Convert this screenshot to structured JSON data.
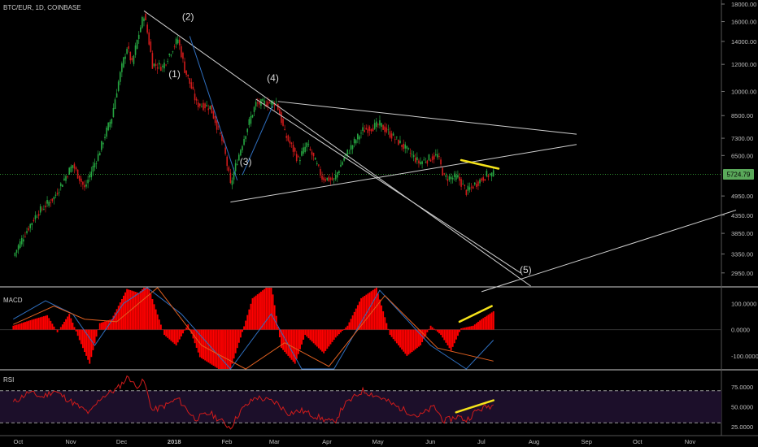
{
  "symbol_title": "BTC/EUR, 1D, COINBASE",
  "colors": {
    "background": "#000000",
    "candle_up": "#26a641",
    "candle_down": "#d01b1b",
    "trendline": "#cfcfcf",
    "highlight": "#f5e31a",
    "macd_hist": "#ff0000",
    "macd_line": "#2f6fbf",
    "signal_line": "#e06020",
    "rsi_line": "#d01b1b",
    "rsi_band": "#1c0f2a",
    "price_line": "#2e8b2e",
    "price_badge": "#5aa85a"
  },
  "chart_data": [
    {
      "type": "candlestick",
      "panel": "price",
      "title": "BTC/EUR, 1D, COINBASE",
      "y_scale": "log",
      "ylim": [
        2700,
        18500
      ],
      "y_ticks": [
        "18000.00",
        "16000.00",
        "14000.00",
        "12000.00",
        "10000.00",
        "8500.00",
        "7300.00",
        "6500.00",
        "5724.79",
        "4950.00",
        "4350.00",
        "3850.00",
        "3350.00",
        "2950.00"
      ],
      "current_price": "5724.79",
      "x_ticks": [
        "Oct",
        "Nov",
        "Dec",
        "2018",
        "Feb",
        "Mar",
        "Apr",
        "May",
        "Jun",
        "Jul",
        "Aug",
        "Sep",
        "Oct",
        "Nov"
      ],
      "price_path": [
        [
          "2017-10-01",
          3300
        ],
        [
          "2017-10-15",
          4400
        ],
        [
          "2017-10-25",
          4900
        ],
        [
          "2017-11-05",
          6100
        ],
        [
          "2017-11-12",
          5200
        ],
        [
          "2017-11-20",
          6500
        ],
        [
          "2017-11-28",
          8400
        ],
        [
          "2017-12-07",
          13500
        ],
        [
          "2017-12-10",
          12000
        ],
        [
          "2017-12-17",
          16800
        ],
        [
          "2017-12-22",
          12000
        ],
        [
          "2017-12-28",
          11800
        ],
        [
          "2018-01-06",
          14200
        ],
        [
          "2018-01-10",
          11600
        ],
        [
          "2018-01-17",
          9200
        ],
        [
          "2018-01-25",
          9000
        ],
        [
          "2018-02-02",
          6900
        ],
        [
          "2018-02-06",
          5300
        ],
        [
          "2018-02-12",
          6800
        ],
        [
          "2018-02-21",
          9200
        ],
        [
          "2018-03-05",
          9300
        ],
        [
          "2018-03-10",
          7500
        ],
        [
          "2018-03-18",
          6300
        ],
        [
          "2018-03-23",
          7000
        ],
        [
          "2018-04-01",
          5600
        ],
        [
          "2018-04-08",
          5500
        ],
        [
          "2018-04-14",
          6400
        ],
        [
          "2018-04-25",
          7700
        ],
        [
          "2018-05-05",
          8000
        ],
        [
          "2018-05-15",
          7200
        ],
        [
          "2018-05-28",
          6200
        ],
        [
          "2018-06-08",
          6500
        ],
        [
          "2018-06-12",
          5600
        ],
        [
          "2018-06-20",
          5600
        ],
        [
          "2018-06-25",
          5100
        ],
        [
          "2018-07-01",
          5400
        ],
        [
          "2018-07-07",
          5700
        ],
        [
          "2018-07-11",
          5725
        ]
      ],
      "wave_labels": [
        {
          "label": "(1)",
          "date": "2018-01-04",
          "price": 11000
        },
        {
          "label": "(2)",
          "date": "2018-01-12",
          "price": 16200
        },
        {
          "label": "(3)",
          "date": "2018-02-15",
          "price": 6100
        },
        {
          "label": "(4)",
          "date": "2018-03-03",
          "price": 10700
        },
        {
          "label": "(5)",
          "date": "2018-07-30",
          "price": 2950
        }
      ],
      "trendlines": [
        {
          "from": [
            "2017-12-17",
            17200
          ],
          "to": [
            "2018-08-02",
            2700
          ]
        },
        {
          "from": [
            "2018-02-21",
            9500
          ],
          "to": [
            "2018-07-27",
            2950
          ]
        },
        {
          "from": [
            "2018-03-06",
            9350
          ],
          "to": [
            "2018-08-29",
            7500
          ]
        },
        {
          "from": [
            "2018-02-06",
            4750
          ],
          "to": [
            "2018-08-29",
            7000
          ]
        },
        {
          "from": [
            "2018-07-04",
            2600
          ],
          "to": [
            "2018-12-01",
            4500
          ]
        },
        {
          "from": [
            "2018-01-13",
            14500
          ],
          "to": [
            "2018-02-10",
            5500
          ]
        },
        {
          "from": [
            "2018-02-13",
            5700
          ],
          "to": [
            "2018-03-03",
            9100
          ]
        }
      ],
      "highlight_line": {
        "from": [
          "2018-06-22",
          6300
        ],
        "to": [
          "2018-07-14",
          5950
        ]
      }
    },
    {
      "type": "histogram",
      "panel": "macd",
      "label": "MACD",
      "ylim": [
        -150,
        160
      ],
      "y_ticks": [
        "100.0000",
        "0.0000",
        "-100.0000"
      ],
      "hist_path": [
        [
          "2017-10-01",
          15
        ],
        [
          "2017-10-13",
          40
        ],
        [
          "2017-10-21",
          55
        ],
        [
          "2017-10-27",
          -10
        ],
        [
          "2017-11-03",
          60
        ],
        [
          "2017-11-09",
          -40
        ],
        [
          "2017-11-15",
          -130
        ],
        [
          "2017-11-21",
          25
        ],
        [
          "2017-11-28",
          40
        ],
        [
          "2017-12-07",
          155
        ],
        [
          "2017-12-14",
          140
        ],
        [
          "2017-12-19",
          175
        ],
        [
          "2017-12-29",
          -20
        ],
        [
          "2018-01-05",
          -60
        ],
        [
          "2018-01-12",
          20
        ],
        [
          "2018-01-19",
          -105
        ],
        [
          "2018-01-30",
          -150
        ],
        [
          "2018-02-06",
          -150
        ],
        [
          "2018-02-12",
          -30
        ],
        [
          "2018-02-19",
          120
        ],
        [
          "2018-03-02",
          175
        ],
        [
          "2018-03-08",
          -70
        ],
        [
          "2018-03-16",
          -130
        ],
        [
          "2018-03-22",
          -20
        ],
        [
          "2018-04-02",
          -90
        ],
        [
          "2018-04-09",
          -30
        ],
        [
          "2018-04-16",
          15
        ],
        [
          "2018-04-24",
          120
        ],
        [
          "2018-05-03",
          160
        ],
        [
          "2018-05-11",
          -20
        ],
        [
          "2018-05-21",
          -100
        ],
        [
          "2018-05-29",
          -60
        ],
        [
          "2018-06-04",
          15
        ],
        [
          "2018-06-10",
          -20
        ],
        [
          "2018-06-16",
          -80
        ],
        [
          "2018-06-22",
          5
        ],
        [
          "2018-06-29",
          15
        ],
        [
          "2018-07-04",
          40
        ],
        [
          "2018-07-11",
          70
        ]
      ],
      "macd_path": [
        [
          "2017-10-01",
          40
        ],
        [
          "2017-10-20",
          110
        ],
        [
          "2017-11-05",
          60
        ],
        [
          "2017-11-18",
          -60
        ],
        [
          "2017-12-05",
          100
        ],
        [
          "2017-12-19",
          280
        ],
        [
          "2018-01-08",
          60
        ],
        [
          "2018-02-06",
          -280
        ],
        [
          "2018-03-02",
          60
        ],
        [
          "2018-03-20",
          -150
        ],
        [
          "2018-04-08",
          -150
        ],
        [
          "2018-05-05",
          150
        ],
        [
          "2018-06-04",
          -60
        ],
        [
          "2018-06-25",
          -160
        ],
        [
          "2018-07-11",
          -40
        ]
      ],
      "signal_path": [
        [
          "2017-10-01",
          20
        ],
        [
          "2017-10-25",
          90
        ],
        [
          "2017-11-12",
          40
        ],
        [
          "2017-12-01",
          30
        ],
        [
          "2017-12-25",
          260
        ],
        [
          "2018-01-20",
          -60
        ],
        [
          "2018-02-15",
          -250
        ],
        [
          "2018-03-10",
          -50
        ],
        [
          "2018-04-05",
          -140
        ],
        [
          "2018-05-08",
          130
        ],
        [
          "2018-06-08",
          -70
        ],
        [
          "2018-07-11",
          -120
        ]
      ],
      "highlight_line": {
        "from": [
          "2018-06-21",
          30
        ],
        "to": [
          "2018-07-10",
          90
        ]
      }
    },
    {
      "type": "line",
      "panel": "rsi",
      "label": "RSI",
      "ylim": [
        15,
        95
      ],
      "y_ticks": [
        "75.0000",
        "50.0000",
        "25.0000"
      ],
      "band": [
        30,
        70
      ],
      "rsi_path": [
        [
          "2017-10-01",
          55
        ],
        [
          "2017-10-10",
          68
        ],
        [
          "2017-10-18",
          62
        ],
        [
          "2017-10-25",
          70
        ],
        [
          "2017-11-03",
          58
        ],
        [
          "2017-11-10",
          48
        ],
        [
          "2017-11-15",
          42
        ],
        [
          "2017-11-22",
          62
        ],
        [
          "2017-12-01",
          72
        ],
        [
          "2017-12-08",
          88
        ],
        [
          "2017-12-12",
          75
        ],
        [
          "2017-12-17",
          82
        ],
        [
          "2017-12-22",
          45
        ],
        [
          "2017-12-30",
          52
        ],
        [
          "2018-01-06",
          60
        ],
        [
          "2018-01-16",
          35
        ],
        [
          "2018-01-25",
          42
        ],
        [
          "2018-02-02",
          30
        ],
        [
          "2018-02-06",
          24
        ],
        [
          "2018-02-12",
          45
        ],
        [
          "2018-02-21",
          62
        ],
        [
          "2018-03-05",
          55
        ],
        [
          "2018-03-12",
          42
        ],
        [
          "2018-03-20",
          45
        ],
        [
          "2018-04-01",
          35
        ],
        [
          "2018-04-08",
          30
        ],
        [
          "2018-04-14",
          52
        ],
        [
          "2018-04-25",
          70
        ],
        [
          "2018-05-05",
          62
        ],
        [
          "2018-05-15",
          50
        ],
        [
          "2018-05-28",
          38
        ],
        [
          "2018-06-06",
          50
        ],
        [
          "2018-06-12",
          32
        ],
        [
          "2018-06-20",
          38
        ],
        [
          "2018-06-25",
          33
        ],
        [
          "2018-07-01",
          45
        ],
        [
          "2018-07-07",
          50
        ],
        [
          "2018-07-11",
          52
        ]
      ],
      "highlight_line": {
        "from": [
          "2018-06-19",
          43
        ],
        "to": [
          "2018-07-11",
          58
        ]
      }
    }
  ]
}
